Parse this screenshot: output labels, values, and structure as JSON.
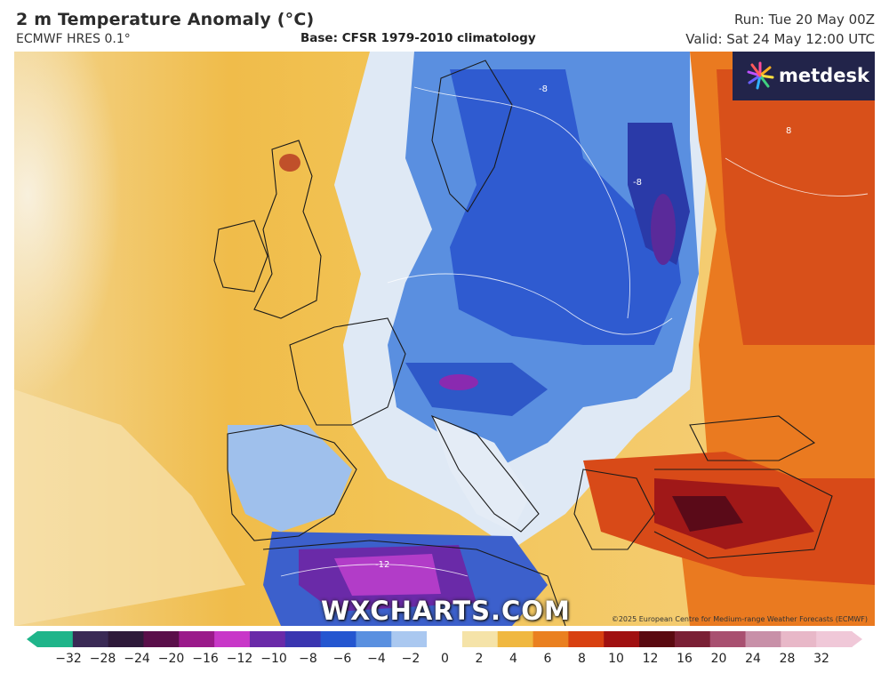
{
  "header": {
    "title": "2 m Temperature Anomaly (°C)",
    "model": "ECMWF HRES 0.1°",
    "base": "Base: CFSR 1979-2010 climatology",
    "run": "Run: Tue 20 May 00Z",
    "valid": "Valid: Sat 24 May 12:00 UTC"
  },
  "brand": {
    "name": "metdesk"
  },
  "watermark": "WXCHARTS.COM",
  "copyright": "©2025 European Centre for Medium-range Weather Forecasts (ECMWF)",
  "map_labels": [
    "-8",
    "-8",
    "8",
    "-12"
  ],
  "legend": {
    "ticks": [
      "−32",
      "−28",
      "−24",
      "−20",
      "−16",
      "−12",
      "−10",
      "−8",
      "−6",
      "−4",
      "−2",
      "0",
      "2",
      "4",
      "6",
      "8",
      "10",
      "12",
      "16",
      "20",
      "24",
      "28",
      "32"
    ],
    "colors": [
      "#1fb58a",
      "#3a2a55",
      "#2e1a3a",
      "#5a0f4a",
      "#9a1a8a",
      "#c838c8",
      "#6a2aa8",
      "#3a35b0",
      "#2456d0",
      "#5a90e0",
      "#aac8f0",
      "#ffffff",
      "#f5e3a8",
      "#f0b840",
      "#ea8020",
      "#d84010",
      "#a01010",
      "#5a0a10",
      "#7a2035",
      "#a85070",
      "#c890a8",
      "#e8b8c8",
      "#f0c8d8"
    ]
  },
  "colors": {
    "warm": "#f0b840",
    "cold": "#2456d0",
    "extreme_cold": "#c838c8",
    "extreme_warm": "#d84010"
  }
}
